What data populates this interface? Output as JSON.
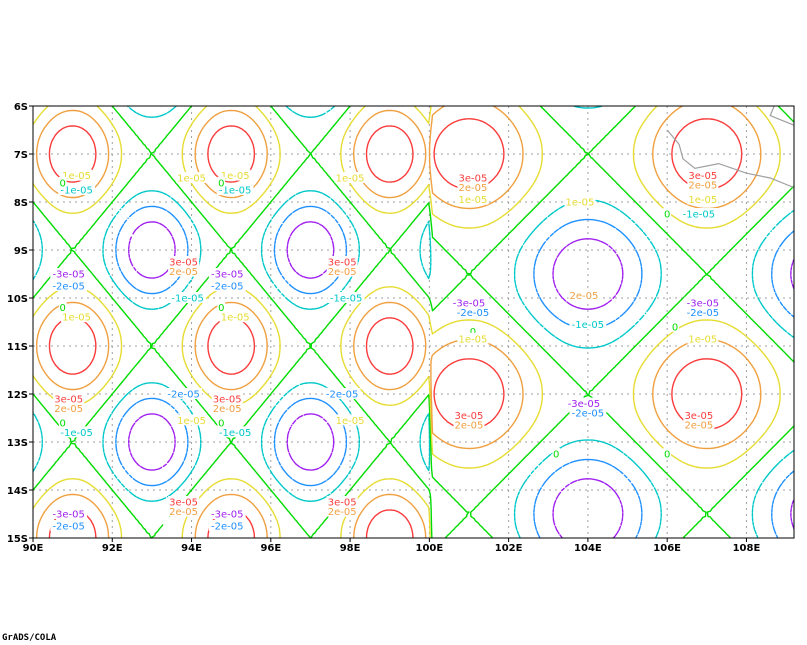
{
  "chart_data": {
    "type": "contour",
    "title": "",
    "xlabel": "",
    "ylabel": "",
    "xlim": [
      90,
      109.2
    ],
    "ylim": [
      -15,
      -6
    ],
    "x_ticks": [
      {
        "value": 90,
        "label": "90E"
      },
      {
        "value": 92,
        "label": "92E"
      },
      {
        "value": 94,
        "label": "94E"
      },
      {
        "value": 96,
        "label": "96E"
      },
      {
        "value": 98,
        "label": "98E"
      },
      {
        "value": 100,
        "label": "100E"
      },
      {
        "value": 102,
        "label": "102E"
      },
      {
        "value": 104,
        "label": "104E"
      },
      {
        "value": 106,
        "label": "106E"
      },
      {
        "value": 108,
        "label": "108E"
      }
    ],
    "y_ticks": [
      {
        "value": -6,
        "label": "6S"
      },
      {
        "value": -7,
        "label": "7S"
      },
      {
        "value": -8,
        "label": "8S"
      },
      {
        "value": -9,
        "label": "9S"
      },
      {
        "value": -10,
        "label": "10S"
      },
      {
        "value": -11,
        "label": "11S"
      },
      {
        "value": -12,
        "label": "12S"
      },
      {
        "value": -13,
        "label": "13S"
      },
      {
        "value": -14,
        "label": "14S"
      },
      {
        "value": -15,
        "label": "15S"
      }
    ],
    "grid": true,
    "levels": [
      {
        "value": -3e-05,
        "color": "#a020f0",
        "dashed": true
      },
      {
        "value": -2e-05,
        "color": "#1e90ff",
        "dashed": true
      },
      {
        "value": -1e-05,
        "color": "#00c8c8",
        "dashed": true
      },
      {
        "value": 0,
        "color": "#00dc00",
        "dashed": false
      },
      {
        "value": 1e-05,
        "color": "#e6dc32",
        "dashed": false
      },
      {
        "value": 2e-05,
        "color": "#f0a040",
        "dashed": false
      },
      {
        "value": 3e-05,
        "color": "#fa3c3c",
        "dashed": false
      }
    ],
    "field": {
      "regions": [
        {
          "lon_range": [
            90,
            100
          ],
          "lon_period": 4,
          "lat_period": 4,
          "positive_lon": 91,
          "positive_lat": -7,
          "shift_lon": 2,
          "shift_lat": 2
        },
        {
          "lon_range": [
            100,
            109.2
          ],
          "lon_period": 6,
          "lat_period": 5,
          "positive_lon": 101,
          "positive_lat": -7,
          "shift_lon": 3,
          "shift_lat": 2.5
        }
      ],
      "amplitude": 3.4e-05,
      "extrema": [
        {
          "lon": 91,
          "lat": -7,
          "sign": 1
        },
        {
          "lon": 93,
          "lat": -9,
          "sign": 1
        },
        {
          "lon": 95,
          "lat": -7,
          "sign": 1
        },
        {
          "lon": 97,
          "lat": -9,
          "sign": 1
        },
        {
          "lon": 99,
          "lat": -7,
          "sign": 1
        },
        {
          "lon": 91,
          "lat": -11,
          "sign": 1
        },
        {
          "lon": 93,
          "lat": -13,
          "sign": 1
        },
        {
          "lon": 95,
          "lat": -11,
          "sign": 1
        },
        {
          "lon": 97,
          "lat": -13,
          "sign": 1
        },
        {
          "lon": 99,
          "lat": -11,
          "sign": 1
        },
        {
          "lon": 93,
          "lat": -7,
          "sign": -1
        },
        {
          "lon": 91,
          "lat": -9,
          "sign": -1
        },
        {
          "lon": 95,
          "lat": -9,
          "sign": -1
        },
        {
          "lon": 97,
          "lat": -7,
          "sign": -1
        },
        {
          "lon": 99,
          "lat": -9,
          "sign": -1
        },
        {
          "lon": 93,
          "lat": -11,
          "sign": -1
        },
        {
          "lon": 91,
          "lat": -13,
          "sign": -1
        },
        {
          "lon": 97,
          "lat": -11,
          "sign": -1
        },
        {
          "lon": 95,
          "lat": -13,
          "sign": -1
        },
        {
          "lon": 99,
          "lat": -13,
          "sign": -1
        },
        {
          "lon": 101,
          "lat": -7,
          "sign": 1
        },
        {
          "lon": 104,
          "lat": -9,
          "sign": 1
        },
        {
          "lon": 107,
          "lat": -7,
          "sign": 1
        },
        {
          "lon": 101,
          "lat": -12,
          "sign": 1
        },
        {
          "lon": 104,
          "lat": -14,
          "sign": 1
        },
        {
          "lon": 107,
          "lat": -12,
          "sign": 1
        },
        {
          "lon": 104,
          "lat": -7,
          "sign": -1
        },
        {
          "lon": 101,
          "lat": -9,
          "sign": -1
        },
        {
          "lon": 107,
          "lat": -9,
          "sign": -1
        },
        {
          "lon": 104,
          "lat": -12,
          "sign": -1
        },
        {
          "lon": 101,
          "lat": -14,
          "sign": -1
        },
        {
          "lon": 107,
          "lat": -14,
          "sign": -1
        }
      ]
    },
    "contour_labels": [
      {
        "text": "1e-05",
        "lon": 91.1,
        "lat": -7.45,
        "level": 1e-05
      },
      {
        "text": "-1e-05",
        "lon": 91.1,
        "lat": -7.75,
        "level": -1e-05
      },
      {
        "text": "0",
        "lon": 90.75,
        "lat": -7.6,
        "level": 0
      },
      {
        "text": "1e-05",
        "lon": 94,
        "lat": -7.5,
        "level": 1e-05
      },
      {
        "text": "1e-05",
        "lon": 95.1,
        "lat": -7.45,
        "level": 1e-05
      },
      {
        "text": "-1e-05",
        "lon": 95.1,
        "lat": -7.75,
        "level": -1e-05
      },
      {
        "text": "0",
        "lon": 94.75,
        "lat": -7.6,
        "level": 0
      },
      {
        "text": "1e-05",
        "lon": 98,
        "lat": -7.5,
        "level": 1e-05
      },
      {
        "text": "3e-05",
        "lon": 93.8,
        "lat": -9.25,
        "level": 3e-05
      },
      {
        "text": "2e-05",
        "lon": 93.8,
        "lat": -9.45,
        "level": 2e-05
      },
      {
        "text": "3e-05",
        "lon": 97.8,
        "lat": -9.25,
        "level": 3e-05
      },
      {
        "text": "2e-05",
        "lon": 97.8,
        "lat": -9.45,
        "level": 2e-05
      },
      {
        "text": "-3e-05",
        "lon": 90.9,
        "lat": -9.5,
        "level": -3e-05
      },
      {
        "text": "-2e-05",
        "lon": 90.9,
        "lat": -9.75,
        "level": -2e-05
      },
      {
        "text": "-3e-05",
        "lon": 94.9,
        "lat": -9.5,
        "level": -3e-05
      },
      {
        "text": "-2e-05",
        "lon": 94.9,
        "lat": -9.75,
        "level": -2e-05
      },
      {
        "text": "-1e-05",
        "lon": 93.9,
        "lat": -10.0,
        "level": -1e-05
      },
      {
        "text": "0",
        "lon": 94.75,
        "lat": -10.2,
        "level": 0
      },
      {
        "text": "1e-05",
        "lon": 95.1,
        "lat": -10.4,
        "level": 1e-05
      },
      {
        "text": "-1e-05",
        "lon": 97.9,
        "lat": -10.0,
        "level": -1e-05
      },
      {
        "text": "0",
        "lon": 90.75,
        "lat": -10.2,
        "level": 0
      },
      {
        "text": "1e-05",
        "lon": 91.1,
        "lat": -10.4,
        "level": 1e-05
      },
      {
        "text": "3e-05",
        "lon": 90.9,
        "lat": -12.1,
        "level": 3e-05
      },
      {
        "text": "2e-05",
        "lon": 90.9,
        "lat": -12.3,
        "level": 2e-05
      },
      {
        "text": "3e-05",
        "lon": 94.9,
        "lat": -12.1,
        "level": 3e-05
      },
      {
        "text": "2e-05",
        "lon": 94.9,
        "lat": -12.3,
        "level": 2e-05
      },
      {
        "text": "-2e-05",
        "lon": 93.8,
        "lat": -12.0,
        "level": -2e-05
      },
      {
        "text": "-2e-05",
        "lon": 97.8,
        "lat": -12.0,
        "level": -2e-05
      },
      {
        "text": "1e-05",
        "lon": 94,
        "lat": -12.55,
        "level": 1e-05
      },
      {
        "text": "1e-05",
        "lon": 98,
        "lat": -12.55,
        "level": 1e-05
      },
      {
        "text": "0",
        "lon": 90.75,
        "lat": -12.6,
        "level": 0
      },
      {
        "text": "-1e-05",
        "lon": 91.1,
        "lat": -12.8,
        "level": -1e-05
      },
      {
        "text": "0",
        "lon": 94.75,
        "lat": -12.6,
        "level": 0
      },
      {
        "text": "-1e-05",
        "lon": 95.1,
        "lat": -12.8,
        "level": -1e-05
      },
      {
        "text": "3e-05",
        "lon": 93.8,
        "lat": -14.25,
        "level": 3e-05
      },
      {
        "text": "2e-05",
        "lon": 93.8,
        "lat": -14.45,
        "level": 2e-05
      },
      {
        "text": "3e-05",
        "lon": 97.8,
        "lat": -14.25,
        "level": 3e-05
      },
      {
        "text": "2e-05",
        "lon": 97.8,
        "lat": -14.45,
        "level": 2e-05
      },
      {
        "text": "-3e-05",
        "lon": 90.9,
        "lat": -14.5,
        "level": -3e-05
      },
      {
        "text": "-2e-05",
        "lon": 90.9,
        "lat": -14.75,
        "level": -2e-05
      },
      {
        "text": "-3e-05",
        "lon": 94.9,
        "lat": -14.5,
        "level": -3e-05
      },
      {
        "text": "-2e-05",
        "lon": 94.9,
        "lat": -14.75,
        "level": -2e-05
      },
      {
        "text": "3e-05",
        "lon": 101.1,
        "lat": -7.5,
        "level": 3e-05
      },
      {
        "text": "2e-05",
        "lon": 101.1,
        "lat": -7.7,
        "level": 2e-05
      },
      {
        "text": "1e-05",
        "lon": 101.1,
        "lat": -7.95,
        "level": 1e-05
      },
      {
        "text": "1e-05",
        "lon": 103.8,
        "lat": -8.0,
        "level": 1e-05
      },
      {
        "text": "3e-05",
        "lon": 106.9,
        "lat": -7.45,
        "level": 3e-05
      },
      {
        "text": "2e-05",
        "lon": 106.9,
        "lat": -7.65,
        "level": 2e-05
      },
      {
        "text": "1e-05",
        "lon": 106.9,
        "lat": -7.95,
        "level": 1e-05
      },
      {
        "text": "-1e-05",
        "lon": 106.8,
        "lat": -8.25,
        "level": -1e-05
      },
      {
        "text": "0",
        "lon": 106.0,
        "lat": -8.25,
        "level": 0
      },
      {
        "text": "2e-05",
        "lon": 103.9,
        "lat": -9.95,
        "level": 2e-05
      },
      {
        "text": "-3e-05",
        "lon": 101.0,
        "lat": -10.1,
        "level": -3e-05
      },
      {
        "text": "-2e-05",
        "lon": 101.1,
        "lat": -10.3,
        "level": -2e-05
      },
      {
        "text": "-3e-05",
        "lon": 106.9,
        "lat": -10.1,
        "level": -3e-05
      },
      {
        "text": "-2e-05",
        "lon": 106.9,
        "lat": -10.3,
        "level": -2e-05
      },
      {
        "text": "0",
        "lon": 101.1,
        "lat": -10.7,
        "level": 0
      },
      {
        "text": "1e-05",
        "lon": 101.1,
        "lat": -10.85,
        "level": 1e-05
      },
      {
        "text": "-1e-05",
        "lon": 104.0,
        "lat": -10.55,
        "level": -1e-05
      },
      {
        "text": "0",
        "lon": 106.2,
        "lat": -10.6,
        "level": 0
      },
      {
        "text": "1e-05",
        "lon": 106.9,
        "lat": -10.85,
        "level": 1e-05
      },
      {
        "text": "-3e-05",
        "lon": 103.9,
        "lat": -12.2,
        "level": -3e-05
      },
      {
        "text": "-2e-05",
        "lon": 104.0,
        "lat": -12.4,
        "level": -2e-05
      },
      {
        "text": "3e-05",
        "lon": 101.0,
        "lat": -12.45,
        "level": 3e-05
      },
      {
        "text": "2e-05",
        "lon": 101.0,
        "lat": -12.65,
        "level": 2e-05
      },
      {
        "text": "3e-05",
        "lon": 106.8,
        "lat": -12.45,
        "level": 3e-05
      },
      {
        "text": "2e-05",
        "lon": 106.8,
        "lat": -12.65,
        "level": 2e-05
      },
      {
        "text": "0",
        "lon": 103.2,
        "lat": -13.25,
        "level": 0
      },
      {
        "text": "0",
        "lon": 106.0,
        "lat": -13.25,
        "level": 0
      }
    ],
    "coastline": [
      [
        108.7,
        -6
      ],
      [
        108.6,
        -6.2
      ],
      [
        108.9,
        -6.3
      ],
      [
        109.2,
        -6.4
      ]
    ],
    "coastline_2": [
      [
        106.0,
        -6.5
      ],
      [
        106.3,
        -6.8
      ],
      [
        106.4,
        -7.1
      ],
      [
        106.7,
        -7.3
      ],
      [
        107.3,
        -7.2
      ],
      [
        108.0,
        -7.4
      ],
      [
        108.6,
        -7.5
      ],
      [
        109.2,
        -7.7
      ]
    ],
    "coastline_color": "#a0a0a0"
  },
  "footer": {
    "credit": "GrADS/COLA"
  }
}
